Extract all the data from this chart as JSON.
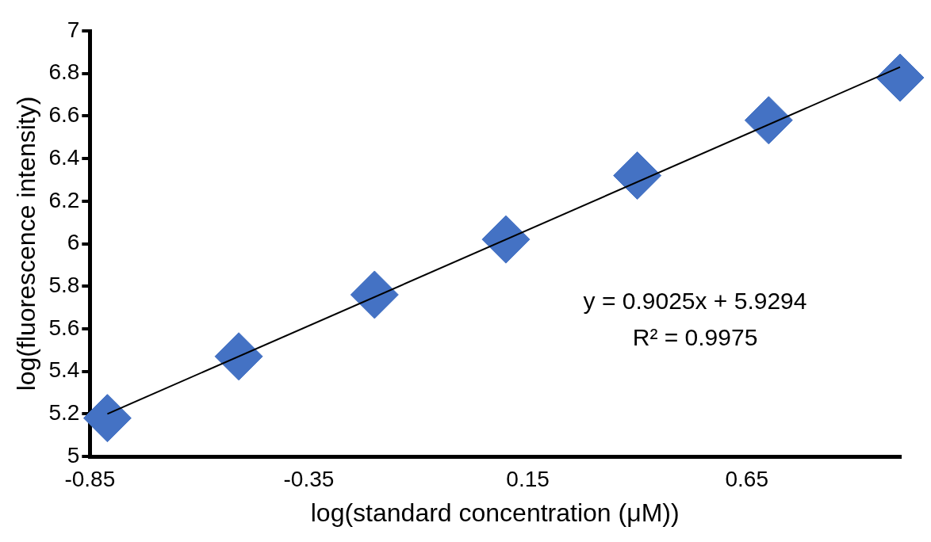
{
  "chart_data": {
    "type": "scatter",
    "xlabel": "log(standard concentration (μM))",
    "ylabel": "log(fluorescence intensity)",
    "x": [
      -0.81,
      -0.51,
      -0.2,
      0.1,
      0.4,
      0.7,
      1.0
    ],
    "series": [
      {
        "type": "scatter",
        "color": "#4472c4",
        "marker": "diamond",
        "values": [
          5.18,
          5.47,
          5.76,
          6.02,
          6.32,
          6.58,
          6.78
        ]
      },
      {
        "type": "line",
        "color": "#000000",
        "marker": "none",
        "x": [
          -0.81,
          1.0
        ],
        "values": [
          5.2,
          6.83
        ]
      }
    ],
    "xlim": [
      -0.85,
      1.0
    ],
    "xticks": [
      -0.85,
      -0.35,
      0.15,
      0.65
    ],
    "ylim": [
      5,
      7
    ],
    "yticks": [
      5,
      5.2,
      5.4,
      5.6,
      5.8,
      6,
      6.2,
      6.4,
      6.6,
      6.8,
      7
    ],
    "grid": false,
    "legend": false,
    "annotations": [
      "y = 0.9025x + 5.9294",
      "R² = 0.9975"
    ]
  }
}
